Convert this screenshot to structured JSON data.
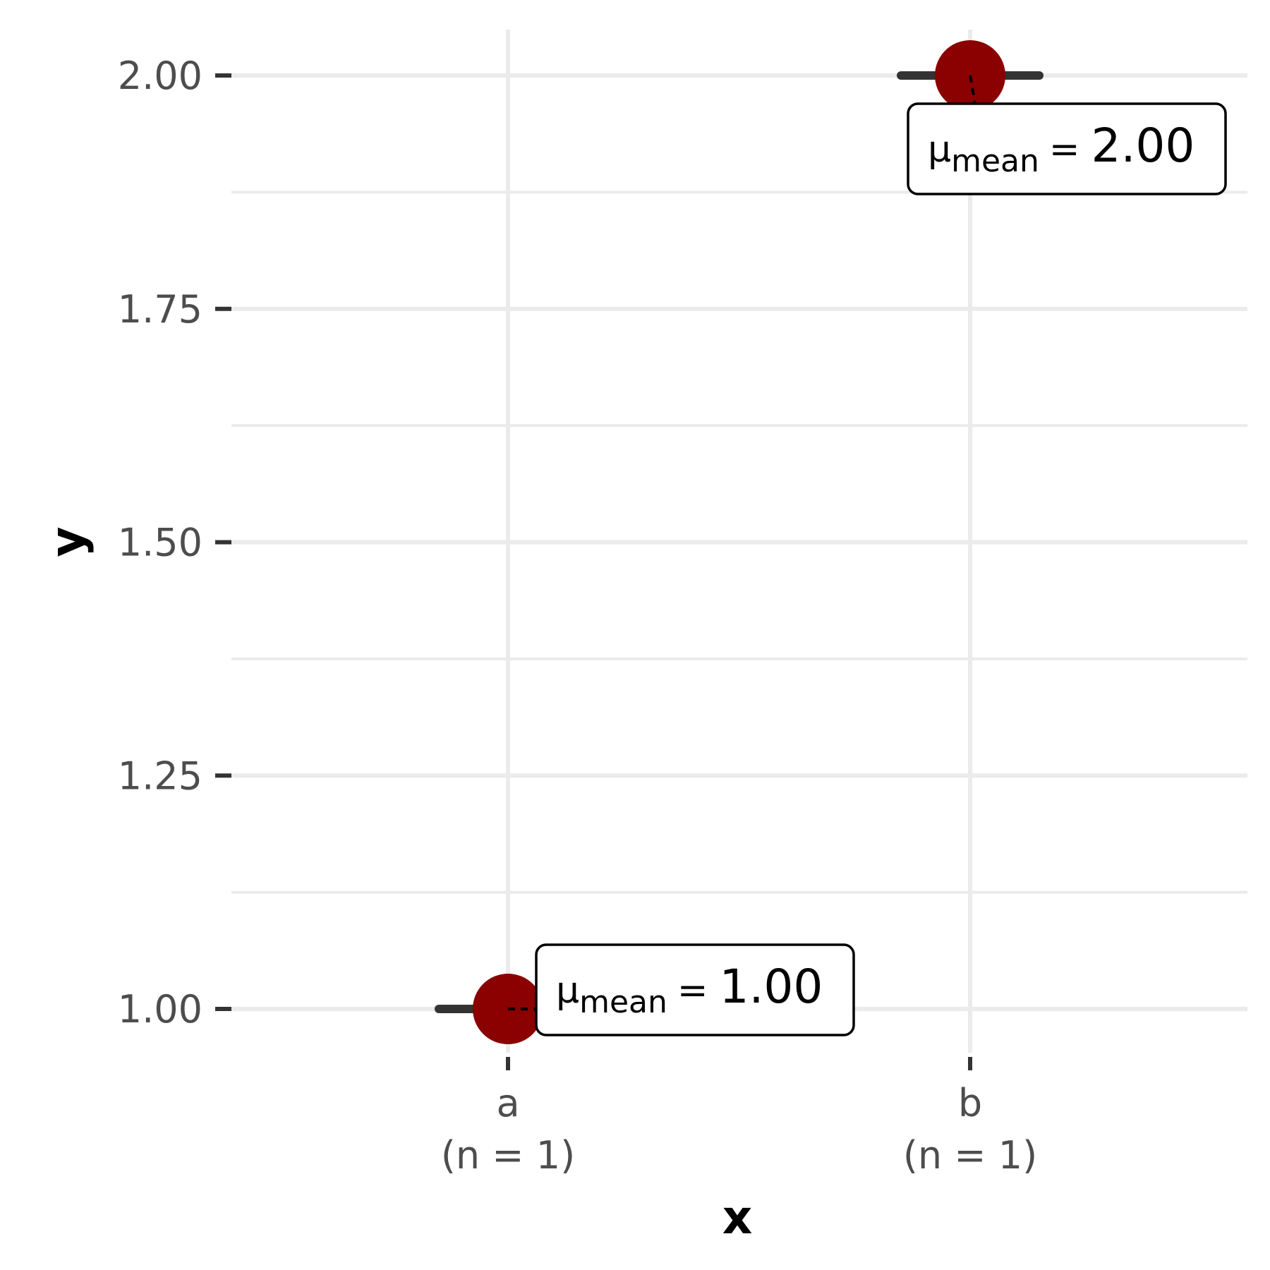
{
  "chart_data": {
    "type": "scatter",
    "xlabel": "x",
    "ylabel": "y",
    "categories": [
      "a",
      "b"
    ],
    "category_counts": [
      "(n = 1)",
      "(n = 1)"
    ],
    "values": [
      1.0,
      2.0
    ],
    "ylim": [
      0.92,
      2.1
    ],
    "y_ticks": [
      1.0,
      1.25,
      1.5,
      1.75,
      2.0
    ],
    "y_tick_labels": [
      "1.00",
      "1.25",
      "1.50",
      "1.75",
      "2.00"
    ],
    "grid": true,
    "point_color": "#8b0000",
    "annotations": [
      {
        "category": "a",
        "symbol": "μ",
        "subscript": "mean",
        "equals": "=",
        "value": "1.00"
      },
      {
        "category": "b",
        "symbol": "μ",
        "subscript": "mean",
        "equals": "=",
        "value": "2.00"
      }
    ]
  }
}
